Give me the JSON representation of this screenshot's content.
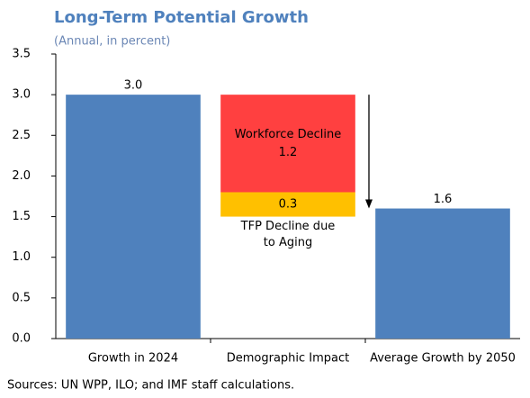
{
  "chart_data": {
    "type": "waterfall",
    "title": "Long-Term Potential Growth",
    "subtitle": "(Annual, in percent)",
    "categories": [
      "Growth in 2024",
      "Demographic Impact",
      "Average Growth by 2050"
    ],
    "values": [
      3.0,
      null,
      1.6
    ],
    "value_labels": [
      "3.0",
      null,
      "1.6"
    ],
    "color": "#4f81bd",
    "decrements": [
      {
        "name": "Workforce Decline",
        "value": 1.2,
        "value_label": "1.2",
        "color": "#ff4040"
      },
      {
        "name": "TFP Decline due to Aging",
        "value": 0.3,
        "value_label": "0.3",
        "color": "#ffc000"
      }
    ],
    "ylim": [
      0,
      3.5
    ],
    "yticks": [
      {
        "value": 0,
        "label": "0.0"
      },
      0.5,
      {
        "value": 1,
        "label": "1.0"
      },
      1.5,
      {
        "value": 2,
        "label": "2.0"
      },
      2.5,
      {
        "value": 3,
        "label": "3.0"
      },
      3.5
    ],
    "note": "Sources: UN WPP, ILO; and IMF staff calculations."
  }
}
